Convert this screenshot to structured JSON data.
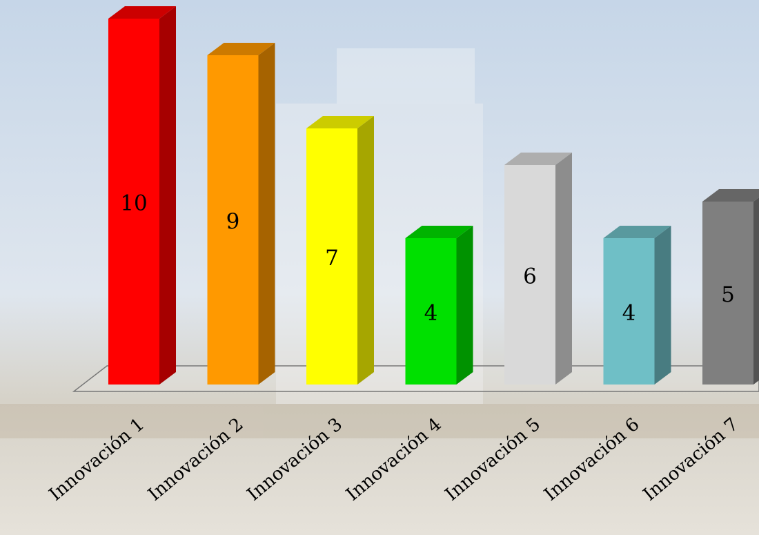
{
  "chart_data": {
    "type": "bar3d",
    "categories": [
      "Innovación 1",
      "Innovación 2",
      "Innovación 3",
      "Innovación 4",
      "Innovación 5",
      "Innovación 6",
      "Innovación 7"
    ],
    "series": [
      {
        "values": [
          10,
          9,
          7,
          4,
          6,
          4,
          5
        ],
        "colors": [
          "#ff0000",
          "#ff9900",
          "#ffff00",
          "#00e000",
          "#d9d9d9",
          "#6fbfc6",
          "#7f7f7f"
        ]
      }
    ]
  }
}
